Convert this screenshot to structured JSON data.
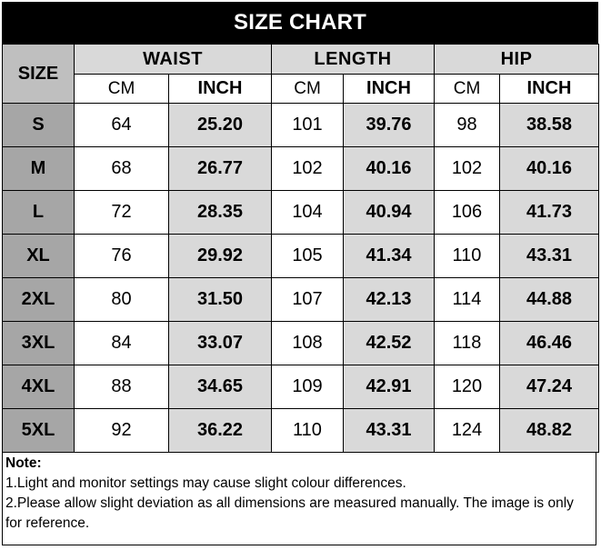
{
  "title": "SIZE CHART",
  "headers": {
    "size": "SIZE",
    "groups": [
      "WAIST",
      "LENGTH",
      "HIP"
    ],
    "units": [
      "CM",
      "INCH",
      "CM",
      "INCH",
      "CM",
      "INCH"
    ]
  },
  "rows": [
    {
      "size": "S",
      "waist_cm": "64",
      "waist_inch": "25.20",
      "length_cm": "101",
      "length_inch": "39.76",
      "hip_cm": "98",
      "hip_inch": "38.58"
    },
    {
      "size": "M",
      "waist_cm": "68",
      "waist_inch": "26.77",
      "length_cm": "102",
      "length_inch": "40.16",
      "hip_cm": "102",
      "hip_inch": "40.16"
    },
    {
      "size": "L",
      "waist_cm": "72",
      "waist_inch": "28.35",
      "length_cm": "104",
      "length_inch": "40.94",
      "hip_cm": "106",
      "hip_inch": "41.73"
    },
    {
      "size": "XL",
      "waist_cm": "76",
      "waist_inch": "29.92",
      "length_cm": "105",
      "length_inch": "41.34",
      "hip_cm": "110",
      "hip_inch": "43.31"
    },
    {
      "size": "2XL",
      "waist_cm": "80",
      "waist_inch": "31.50",
      "length_cm": "107",
      "length_inch": "42.13",
      "hip_cm": "114",
      "hip_inch": "44.88"
    },
    {
      "size": "3XL",
      "waist_cm": "84",
      "waist_inch": "33.07",
      "length_cm": "108",
      "length_inch": "42.52",
      "hip_cm": "118",
      "hip_inch": "46.46"
    },
    {
      "size": "4XL",
      "waist_cm": "88",
      "waist_inch": "34.65",
      "length_cm": "109",
      "length_inch": "42.91",
      "hip_cm": "120",
      "hip_inch": "47.24"
    },
    {
      "size": "5XL",
      "waist_cm": "92",
      "waist_inch": "36.22",
      "length_cm": "110",
      "length_inch": "43.31",
      "hip_cm": "124",
      "hip_inch": "48.82"
    }
  ],
  "notes": {
    "title": "Note:",
    "lines": [
      "1.Light and monitor settings may cause slight colour differences.",
      "2.Please allow slight deviation as all dimensions are measured manually. The image is only for reference."
    ]
  },
  "paste_options_icon": "paste-options-icon",
  "colors": {
    "title_bg": "#000000",
    "size_column": "#a6a6a6",
    "inch_column": "#d9d9d9",
    "header_group": "#d9d9d9"
  }
}
